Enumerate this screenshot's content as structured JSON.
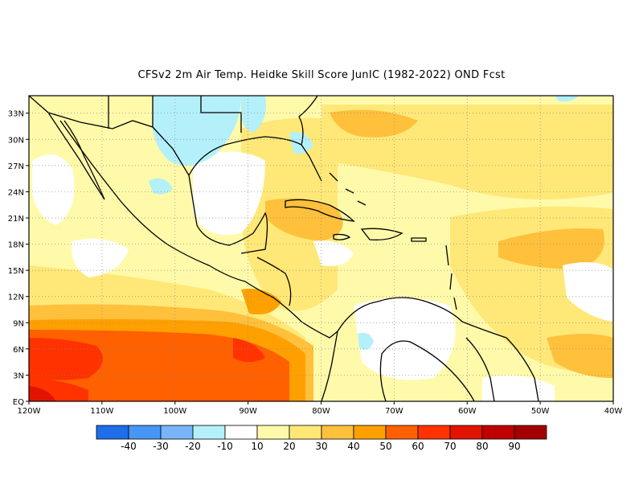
{
  "title": "CFSv2  2m Air Temp. Heidke Skill Score JunIC (1982-2022) OND Fcst",
  "map": {
    "lon_range": [
      -120,
      -40
    ],
    "lat_range": [
      0,
      35
    ],
    "lon_ticks": [
      {
        "value": -120,
        "label": "120W"
      },
      {
        "value": -110,
        "label": "110W"
      },
      {
        "value": -100,
        "label": "100W"
      },
      {
        "value": -90,
        "label": "90W"
      },
      {
        "value": -80,
        "label": "80W"
      },
      {
        "value": -70,
        "label": "70W"
      },
      {
        "value": -60,
        "label": "60W"
      },
      {
        "value": -50,
        "label": "50W"
      },
      {
        "value": -40,
        "label": "40W"
      }
    ],
    "lat_ticks": [
      {
        "value": 0,
        "label": "EQ"
      },
      {
        "value": 3,
        "label": "3N"
      },
      {
        "value": 6,
        "label": "6N"
      },
      {
        "value": 9,
        "label": "9N"
      },
      {
        "value": 12,
        "label": "12N"
      },
      {
        "value": 15,
        "label": "15N"
      },
      {
        "value": 18,
        "label": "18N"
      },
      {
        "value": 21,
        "label": "21N"
      },
      {
        "value": 24,
        "label": "24N"
      },
      {
        "value": 27,
        "label": "27N"
      },
      {
        "value": 30,
        "label": "30N"
      },
      {
        "value": 33,
        "label": "33N"
      }
    ],
    "grid": "dotted"
  },
  "colorbar": {
    "colors": [
      "#1e6eeb",
      "#4696f5",
      "#78b4fa",
      "#b4f0fa",
      "#ffffff",
      "#fffaaa",
      "#ffe878",
      "#ffc03c",
      "#ffa000",
      "#ff6000",
      "#ff3200",
      "#e11400",
      "#c00000",
      "#a50000"
    ],
    "labels": [
      "-40",
      "-30",
      "-20",
      "-10",
      "10",
      "20",
      "30",
      "40",
      "50",
      "60",
      "70",
      "80",
      "90"
    ]
  }
}
